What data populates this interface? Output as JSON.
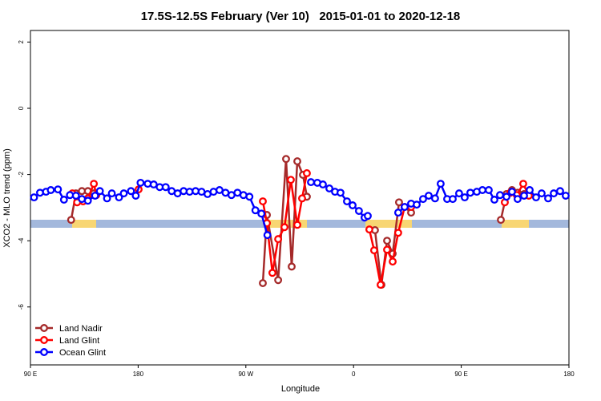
{
  "chart_data": {
    "type": "line",
    "title": "17.5S-12.5S February (Ver 10)   2015-01-01 to 2020-12-18",
    "x_label": "Longitude",
    "y_label": "XCO2 - MLO trend (ppm)",
    "xlim": [
      90,
      540
    ],
    "ylim": [
      -7.75,
      2.35
    ],
    "xticks": [
      {
        "value": 90,
        "label": "90 E"
      },
      180,
      {
        "value": 270,
        "label": "90 W"
      },
      {
        "value": 360,
        "label": "0"
      },
      {
        "value": 450,
        "label": "90 E"
      },
      {
        "value": 540,
        "label": "180"
      }
    ],
    "yticks": [
      2,
      0,
      -2,
      -4,
      -6
    ],
    "legend": "bottom-left",
    "series": [
      {
        "name": "Land Nadir",
        "color": "#a52a2a",
        "x": [
          124,
          128,
          133,
          138,
          143,
          null,
          284.2,
          287.6,
          297,
          303.6,
          308.3,
          313,
          317.7,
          321,
          null,
          377.9,
          383.3,
          388,
          392.7,
          398,
          408.1,
          null,
          483.1,
          487.8,
          492.4,
          497.1,
          502.5
        ],
        "values": [
          -3.37,
          -2.57,
          -2.5,
          -2.5,
          -2.57,
          null,
          -5.28,
          -3.22,
          -5.19,
          -1.53,
          -4.78,
          -1.6,
          -2.01,
          -2.67,
          null,
          -3.68,
          -5.33,
          -4.0,
          -4.39,
          -2.84,
          -3.15,
          null,
          -3.37,
          -2.59,
          -2.47,
          -2.55,
          -2.59
        ]
      },
      {
        "name": "Land Glint",
        "color": "#ff0000",
        "x": [
          125,
          129,
          134,
          138,
          143,
          145,
          null,
          180.4,
          null,
          284.2,
          287.6,
          292.2,
          297,
          302.3,
          307.6,
          313,
          317,
          321,
          null,
          373.2,
          377.2,
          382.6,
          388,
          392.7,
          397.3,
          402.7,
          408.1,
          null,
          486.4,
          491.1,
          496.4,
          501.8,
          506.5
        ],
        "values": [
          -2.57,
          -2.84,
          -2.81,
          -2.72,
          -2.28,
          -2.62,
          null,
          -2.45,
          null,
          -2.81,
          -3.47,
          -4.97,
          -3.95,
          -3.59,
          -2.16,
          -3.52,
          -2.72,
          -1.96,
          null,
          -3.66,
          -4.29,
          -5.33,
          -4.27,
          -4.63,
          -3.76,
          -2.98,
          -2.98,
          null,
          -2.84,
          -2.55,
          -2.62,
          -2.28,
          -2.64
        ]
      },
      {
        "name": "Ocean Glint",
        "color": "#0000ff",
        "x": [
          93,
          98,
          103,
          107,
          113,
          118,
          123,
          128,
          133,
          138,
          144,
          148,
          154,
          158,
          164,
          168,
          174,
          178,
          182,
          188,
          193,
          198,
          203,
          208,
          213,
          218,
          223,
          228,
          233,
          238,
          243,
          248,
          253,
          258,
          263,
          268,
          273,
          278,
          283,
          288,
          null,
          324.4,
          329.7,
          334.4,
          339.8,
          344.5,
          349.1,
          354.5,
          359.2,
          364.5,
          369.2,
          371.9,
          null,
          397.3,
          402.7,
          408.1,
          412.8,
          418.1,
          422.8,
          428.1,
          432.8,
          438.2,
          442.9,
          448.2,
          452.9,
          457.6,
          463,
          467.7,
          473,
          477.7,
          482.4,
          487.8,
          492.4,
          497.1,
          502.5,
          507.2,
          512.5,
          517.2,
          522.6,
          527.3,
          532.6,
          537.3
        ],
        "values": [
          -2.69,
          -2.55,
          -2.52,
          -2.47,
          -2.45,
          -2.76,
          -2.62,
          -2.64,
          -2.74,
          -2.79,
          -2.64,
          -2.5,
          -2.72,
          -2.57,
          -2.69,
          -2.57,
          -2.5,
          -2.64,
          -2.25,
          -2.28,
          -2.3,
          -2.38,
          -2.38,
          -2.5,
          -2.57,
          -2.5,
          -2.52,
          -2.5,
          -2.52,
          -2.59,
          -2.52,
          -2.47,
          -2.55,
          -2.62,
          -2.55,
          -2.62,
          -2.67,
          -3.08,
          -3.18,
          -3.83,
          null,
          -2.23,
          -2.25,
          -2.3,
          -2.42,
          -2.52,
          -2.55,
          -2.81,
          -2.93,
          -3.1,
          -3.3,
          -3.25,
          null,
          -3.15,
          -2.98,
          -2.88,
          -2.91,
          -2.74,
          -2.64,
          -2.72,
          -2.28,
          -2.74,
          -2.74,
          -2.57,
          -2.69,
          -2.55,
          -2.52,
          -2.47,
          -2.47,
          -2.76,
          -2.62,
          -2.67,
          -2.52,
          -2.74,
          -2.64,
          -2.47,
          -2.69,
          -2.57,
          -2.72,
          -2.57,
          -2.5,
          -2.64
        ]
      }
    ]
  }
}
